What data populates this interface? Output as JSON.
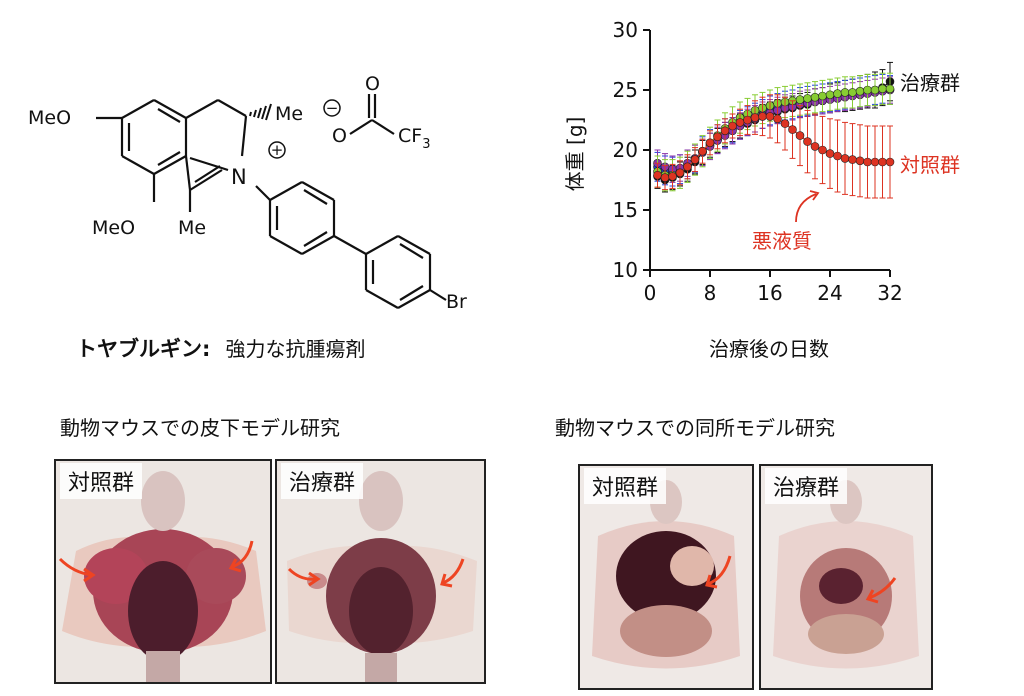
{
  "structure": {
    "ome_top": "MeO",
    "ome_bottom": "MeO",
    "me_stereo": "Me",
    "me_bottom": "Me",
    "n_atom": "N",
    "n_charge": "+",
    "o_carbonyl": "O",
    "o_anion": "O",
    "anion_charge": "−",
    "cf3": "CF",
    "cf3_sub": "3",
    "br": "Br"
  },
  "compound": {
    "name": "トヤブルギン:",
    "description": "強力な抗腫瘍剤"
  },
  "chart_data": {
    "type": "line",
    "title": "",
    "xlabel": "治療後の日数",
    "ylabel": "体重 [g]",
    "xlim": [
      0,
      32
    ],
    "ylim": [
      10,
      30
    ],
    "xticks": [
      "0",
      "8",
      "16",
      "24",
      "32"
    ],
    "yticks": [
      "10",
      "15",
      "20",
      "25",
      "30"
    ],
    "x": [
      1,
      2,
      3,
      4,
      5,
      6,
      7,
      8,
      9,
      10,
      11,
      12,
      13,
      14,
      15,
      16,
      17,
      18,
      19,
      20,
      21,
      22,
      23,
      24,
      25,
      26,
      27,
      28,
      29,
      30,
      31,
      32
    ],
    "series": [
      {
        "name": "治療群",
        "color": "#111111",
        "values": [
          17.8,
          17.5,
          17.7,
          18.0,
          18.4,
          19.0,
          19.8,
          20.4,
          20.8,
          21.3,
          21.7,
          22.0,
          22.2,
          22.5,
          22.8,
          23.0,
          23.2,
          23.4,
          23.5,
          23.7,
          23.8,
          24.0,
          24.1,
          24.3,
          24.4,
          24.5,
          24.6,
          24.8,
          24.9,
          25.0,
          25.2,
          25.7
        ],
        "error": [
          1.0,
          1.0,
          1.0,
          1.0,
          1.0,
          1.0,
          1.0,
          1.0,
          1.0,
          1.0,
          1.0,
          1.0,
          1.0,
          1.0,
          1.0,
          1.0,
          1.0,
          1.0,
          1.0,
          1.0,
          1.0,
          1.1,
          1.1,
          1.2,
          1.2,
          1.3,
          1.3,
          1.4,
          1.4,
          1.5,
          1.5,
          1.6
        ]
      },
      {
        "name": "",
        "color": "#2244dd",
        "values": [
          18.6,
          18.3,
          18.2,
          18.4,
          18.8,
          19.3,
          19.9,
          20.5,
          20.9,
          21.4,
          21.8,
          22.1,
          22.4,
          22.7,
          23.0,
          23.3,
          23.5,
          23.7,
          23.8,
          24.0,
          24.1,
          24.2,
          24.3,
          24.4,
          24.5,
          24.6,
          24.7,
          24.8,
          24.9,
          25.0,
          25.1,
          25.0
        ],
        "error": [
          1.2,
          1.2,
          1.2,
          1.2,
          1.2,
          1.2,
          1.2,
          1.2,
          1.2,
          1.2,
          1.2,
          1.2,
          1.2,
          1.2,
          1.2,
          1.2,
          1.2,
          1.2,
          1.2,
          1.2,
          1.2,
          1.2,
          1.2,
          1.2,
          1.2,
          1.2,
          1.2,
          1.2,
          1.2,
          1.2,
          1.2,
          1.2
        ]
      },
      {
        "name": "",
        "color": "#8833aa",
        "values": [
          18.9,
          18.6,
          18.4,
          18.5,
          18.9,
          19.3,
          19.8,
          20.3,
          20.8,
          21.2,
          21.6,
          22.0,
          22.3,
          22.6,
          22.9,
          23.1,
          23.3,
          23.5,
          23.6,
          23.8,
          23.9,
          24.0,
          24.1,
          24.2,
          24.3,
          24.4,
          24.5,
          24.6,
          24.7,
          24.8,
          24.9,
          25.0
        ],
        "error": [
          1.1,
          1.1,
          1.1,
          1.1,
          1.1,
          1.1,
          1.1,
          1.1,
          1.1,
          1.1,
          1.1,
          1.1,
          1.1,
          1.1,
          1.1,
          1.1,
          1.1,
          1.1,
          1.1,
          1.1,
          1.1,
          1.1,
          1.1,
          1.1,
          1.1,
          1.1,
          1.1,
          1.1,
          1.1,
          1.1,
          1.1,
          1.1
        ]
      },
      {
        "name": "",
        "color": "#88cc33",
        "values": [
          18.2,
          17.9,
          17.9,
          18.1,
          18.6,
          19.2,
          19.9,
          20.6,
          21.2,
          21.8,
          22.3,
          22.7,
          23.0,
          23.3,
          23.5,
          23.7,
          23.9,
          24.0,
          24.1,
          24.2,
          24.3,
          24.4,
          24.5,
          24.6,
          24.7,
          24.8,
          24.8,
          24.9,
          25.0,
          25.0,
          25.1,
          25.1
        ],
        "error": [
          1.3,
          1.3,
          1.3,
          1.3,
          1.3,
          1.3,
          1.3,
          1.3,
          1.3,
          1.3,
          1.3,
          1.3,
          1.3,
          1.3,
          1.3,
          1.3,
          1.3,
          1.3,
          1.3,
          1.3,
          1.3,
          1.3,
          1.3,
          1.3,
          1.3,
          1.3,
          1.3,
          1.3,
          1.3,
          1.3,
          1.3,
          1.3
        ]
      },
      {
        "name": "対照群",
        "color": "#dd3322",
        "values": [
          17.9,
          17.7,
          17.8,
          18.1,
          18.6,
          19.2,
          19.9,
          20.6,
          21.1,
          21.6,
          22.0,
          22.3,
          22.5,
          22.7,
          22.8,
          22.8,
          22.6,
          22.2,
          21.7,
          21.2,
          20.7,
          20.3,
          20.0,
          19.7,
          19.5,
          19.3,
          19.2,
          19.1,
          19.0,
          19.0,
          19.0,
          19.0
        ],
        "error": [
          1.0,
          1.0,
          1.0,
          1.0,
          1.0,
          1.0,
          1.0,
          1.0,
          1.0,
          1.0,
          1.0,
          1.1,
          1.2,
          1.4,
          1.6,
          1.8,
          2.0,
          2.2,
          2.4,
          2.5,
          2.6,
          2.7,
          2.8,
          2.9,
          3.0,
          3.0,
          3.0,
          3.0,
          3.0,
          3.0,
          3.0,
          3.0
        ]
      }
    ],
    "annotation": "悪液質",
    "legend_labels": {
      "treated": "治療群",
      "control": "対照群"
    },
    "grid": false
  },
  "photos": {
    "subcutaneous_title": "動物マウスでの皮下モデル研究",
    "orthotopic_title": "動物マウスでの同所モデル研究",
    "sub_control_label": "対照群",
    "sub_treated_label": "治療群",
    "orth_control_label": "対照群",
    "orth_treated_label": "治療群",
    "arrow_color": "#ee4422"
  }
}
